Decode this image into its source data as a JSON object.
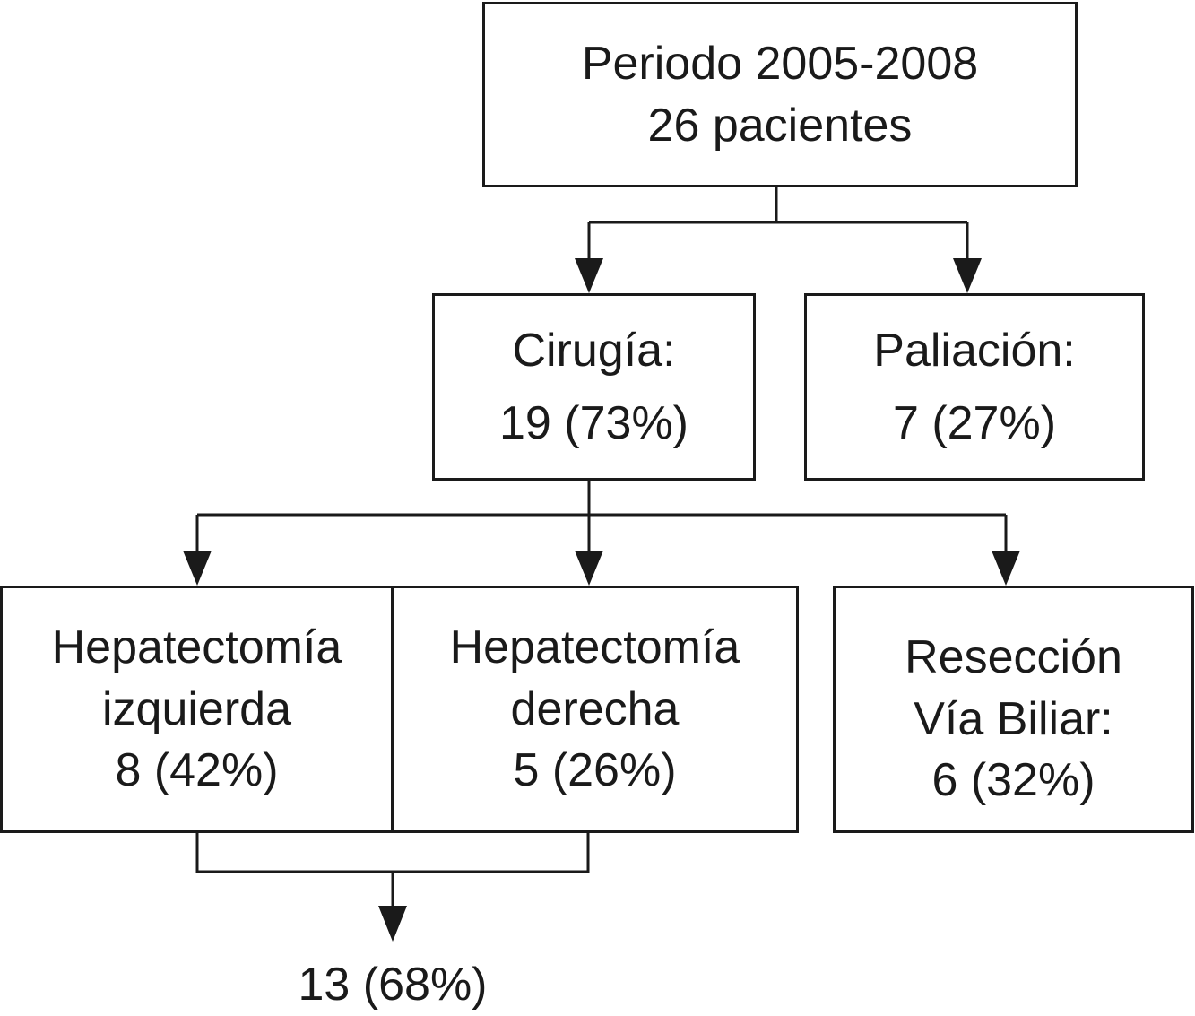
{
  "nodes": {
    "root": {
      "line1": "Periodo 2005-2008",
      "line2": "26 pacientes"
    },
    "cirugia": {
      "line1": "Cirugía:",
      "line2": "19 (73%)"
    },
    "paliacion": {
      "line1": "Paliación:",
      "line2": "7 (27%)"
    },
    "hep_izq": {
      "line1": "Hepatectomía",
      "line2": "izquierda",
      "line3": "8 (42%)"
    },
    "hep_der": {
      "line1": "Hepatectomía",
      "line2": "derecha",
      "line3": "5 (26%)"
    },
    "reseccion": {
      "line1": "Resección",
      "line2": "Vía Biliar:",
      "line3": "6 (32%)"
    }
  },
  "result": {
    "label": "13 (68%)"
  },
  "colors": {
    "line": "#1a1a1a",
    "background": "#ffffff"
  }
}
